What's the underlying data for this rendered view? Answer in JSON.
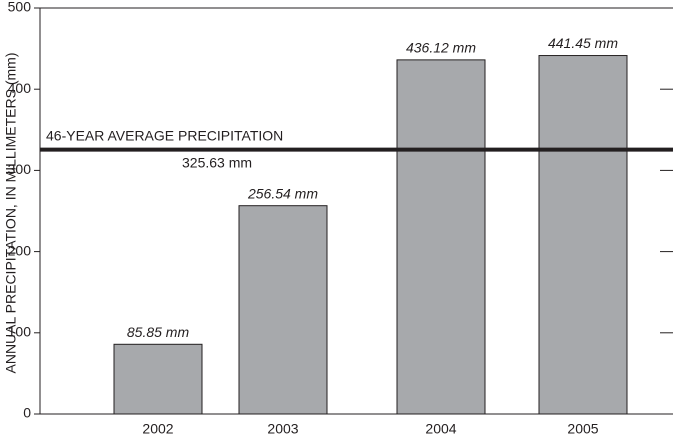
{
  "chart_data": {
    "type": "bar",
    "y_label": "ANNUAL PRECIPITATION, IN MILLIMETERS (mm)",
    "categories": [
      "2002",
      "2003",
      "2004",
      "2005"
    ],
    "values": [
      85.85,
      256.54,
      436.12,
      441.45
    ],
    "value_labels": [
      "85.85 mm",
      "256.54 mm",
      "436.12 mm",
      "441.45 mm"
    ],
    "color": "#a7a9ac",
    "ylim": [
      0,
      500
    ],
    "yticks": [
      0,
      100,
      200,
      300,
      400,
      500
    ],
    "reference_line": {
      "value": 325.63,
      "label": "46-YEAR AVERAGE PRECIPITATION",
      "value_label": "325.63 mm"
    }
  }
}
